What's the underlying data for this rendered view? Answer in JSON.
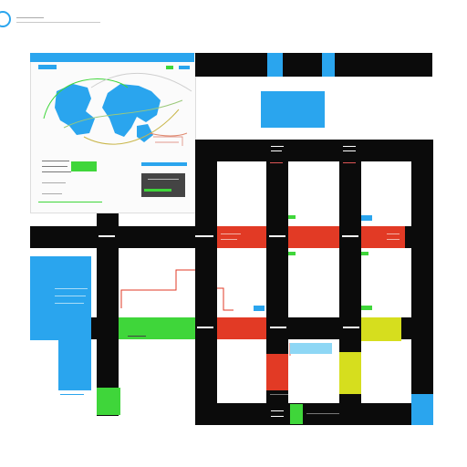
{
  "header": {
    "logo_icon": "ring-logo-icon",
    "title_line_1": "",
    "title_line_2": ""
  },
  "colors": {
    "black": "#0b0b0b",
    "blue": "#2aa5ee",
    "green": "#3fd63a",
    "red": "#e23a25",
    "yellow": "#d6de1e",
    "light_blue": "#8ed7f5"
  },
  "map_panel": {
    "header_label": "",
    "map_icon": "world-map-icon",
    "list_rows": [
      "",
      "",
      "",
      "",
      ""
    ],
    "inset_label": ""
  },
  "flow_labels": {
    "red_band_left": "",
    "red_band_right": "",
    "green_band": "",
    "bottom_caption": ""
  }
}
